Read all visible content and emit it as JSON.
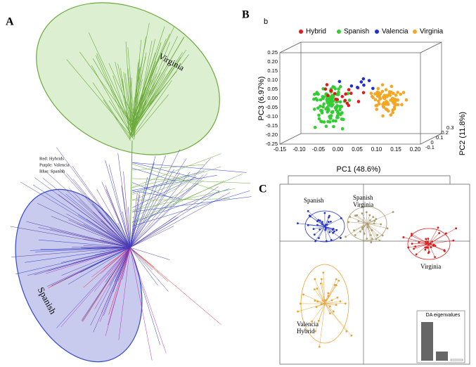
{
  "panel_a": {
    "label": "A",
    "clades": [
      "Virginia",
      "Spanish"
    ],
    "legend": [
      "Red: Hybrids",
      "Purple: Valencia",
      "Blue: Spanish"
    ]
  },
  "panel_b": {
    "label": "B",
    "sublabel": "b",
    "legend": [
      {
        "name": "Hybrid",
        "color": "#e31a1c"
      },
      {
        "name": "Spanish",
        "color": "#33cc33"
      },
      {
        "name": "Valencia",
        "color": "#1f2fd0"
      },
      {
        "name": "Virginia",
        "color": "#f5a623"
      }
    ],
    "x_label": "PC1 (48.6%)",
    "y_label": "PC2 (11.8%)",
    "z_label": "PC3 (6.97%)",
    "x_ticks": [
      "-0.15",
      "-0.10",
      "-0.05",
      "0.00",
      "0.05",
      "0.10",
      "0.15",
      "0.20"
    ],
    "y_ticks": [
      "-0.1",
      "0",
      "0.1",
      "0.2",
      "0.3"
    ],
    "z_ticks": [
      "-0.25",
      "-0.20",
      "-0.15",
      "-0.10",
      "-0.05",
      "0.00",
      "0.05",
      "0.10",
      "0.15",
      "0.20",
      "0.25"
    ]
  },
  "panel_c": {
    "label": "C",
    "groups": [
      "Spanish",
      "Spanish\nVirginia",
      "Virginia",
      "Valencia\nHybrid"
    ],
    "inset_title": "DA eigenvalues"
  }
}
